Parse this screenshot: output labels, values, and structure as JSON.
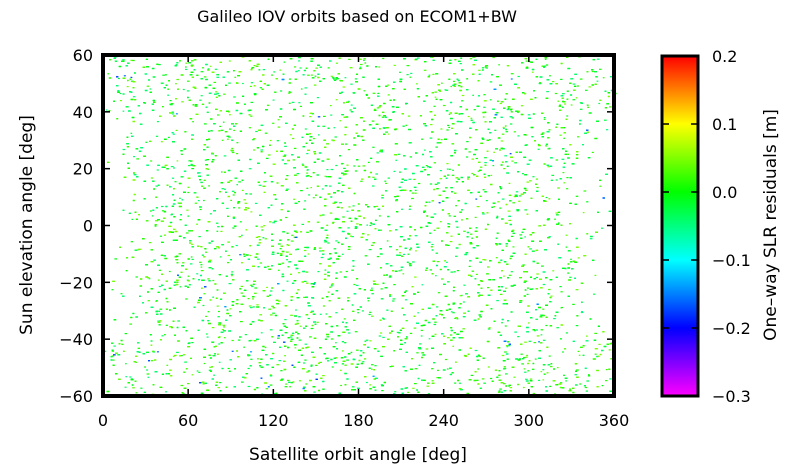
{
  "chart_data": {
    "type": "scatter",
    "title": "Galileo IOV orbits based on ECOM1+BW",
    "xlabel": "Satellite orbit angle [deg]",
    "ylabel": "Sun elevation angle [deg]",
    "xlim": [
      0,
      360
    ],
    "ylim": [
      -60,
      60
    ],
    "xticks": [
      "0",
      "60",
      "120",
      "180",
      "240",
      "300",
      "360"
    ],
    "yticks": [
      "-60",
      "-40",
      "-20",
      "0",
      "20",
      "40",
      "60"
    ],
    "grid": false,
    "note": "Dense scatter of one-way SLR residuals; point color encodes residual value. Points fill nearly the whole domain, sparser near orbit angles 0 and 360 at mid sun elevations.",
    "colorbar": {
      "label": "One–way SLR residuals [m]",
      "range": [
        -0.3,
        0.2
      ],
      "ticks": [
        "0.2",
        "0.1",
        "0.0",
        "−0.1",
        "−0.2",
        "−0.3"
      ],
      "tick_values": [
        0.2,
        0.1,
        0.0,
        -0.1,
        -0.2,
        -0.3
      ],
      "colors": [
        "#ff00ff",
        "#0000ff",
        "#00ffff",
        "#00ff00",
        "#ffff00",
        "#ff0000"
      ]
    },
    "typical_residual_range": [
      -0.05,
      0.05
    ]
  }
}
